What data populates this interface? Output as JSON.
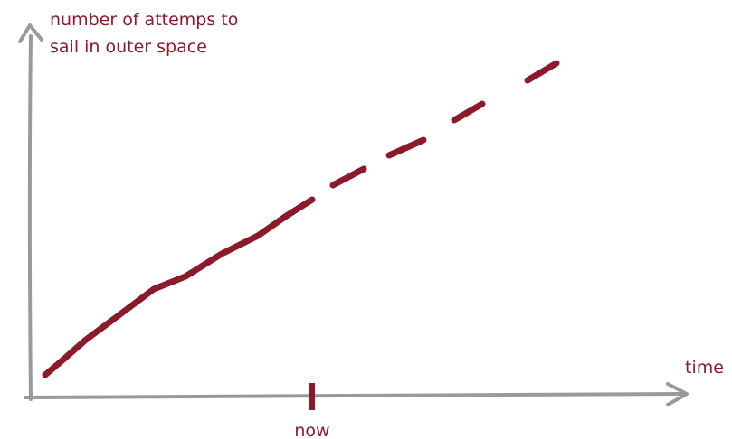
{
  "chart_data": {
    "type": "line",
    "ylabel": [
      "number of attemps to",
      "sail in outer space"
    ],
    "xlabel": "time",
    "annotation": "now",
    "color": "#8b1a2b"
  }
}
